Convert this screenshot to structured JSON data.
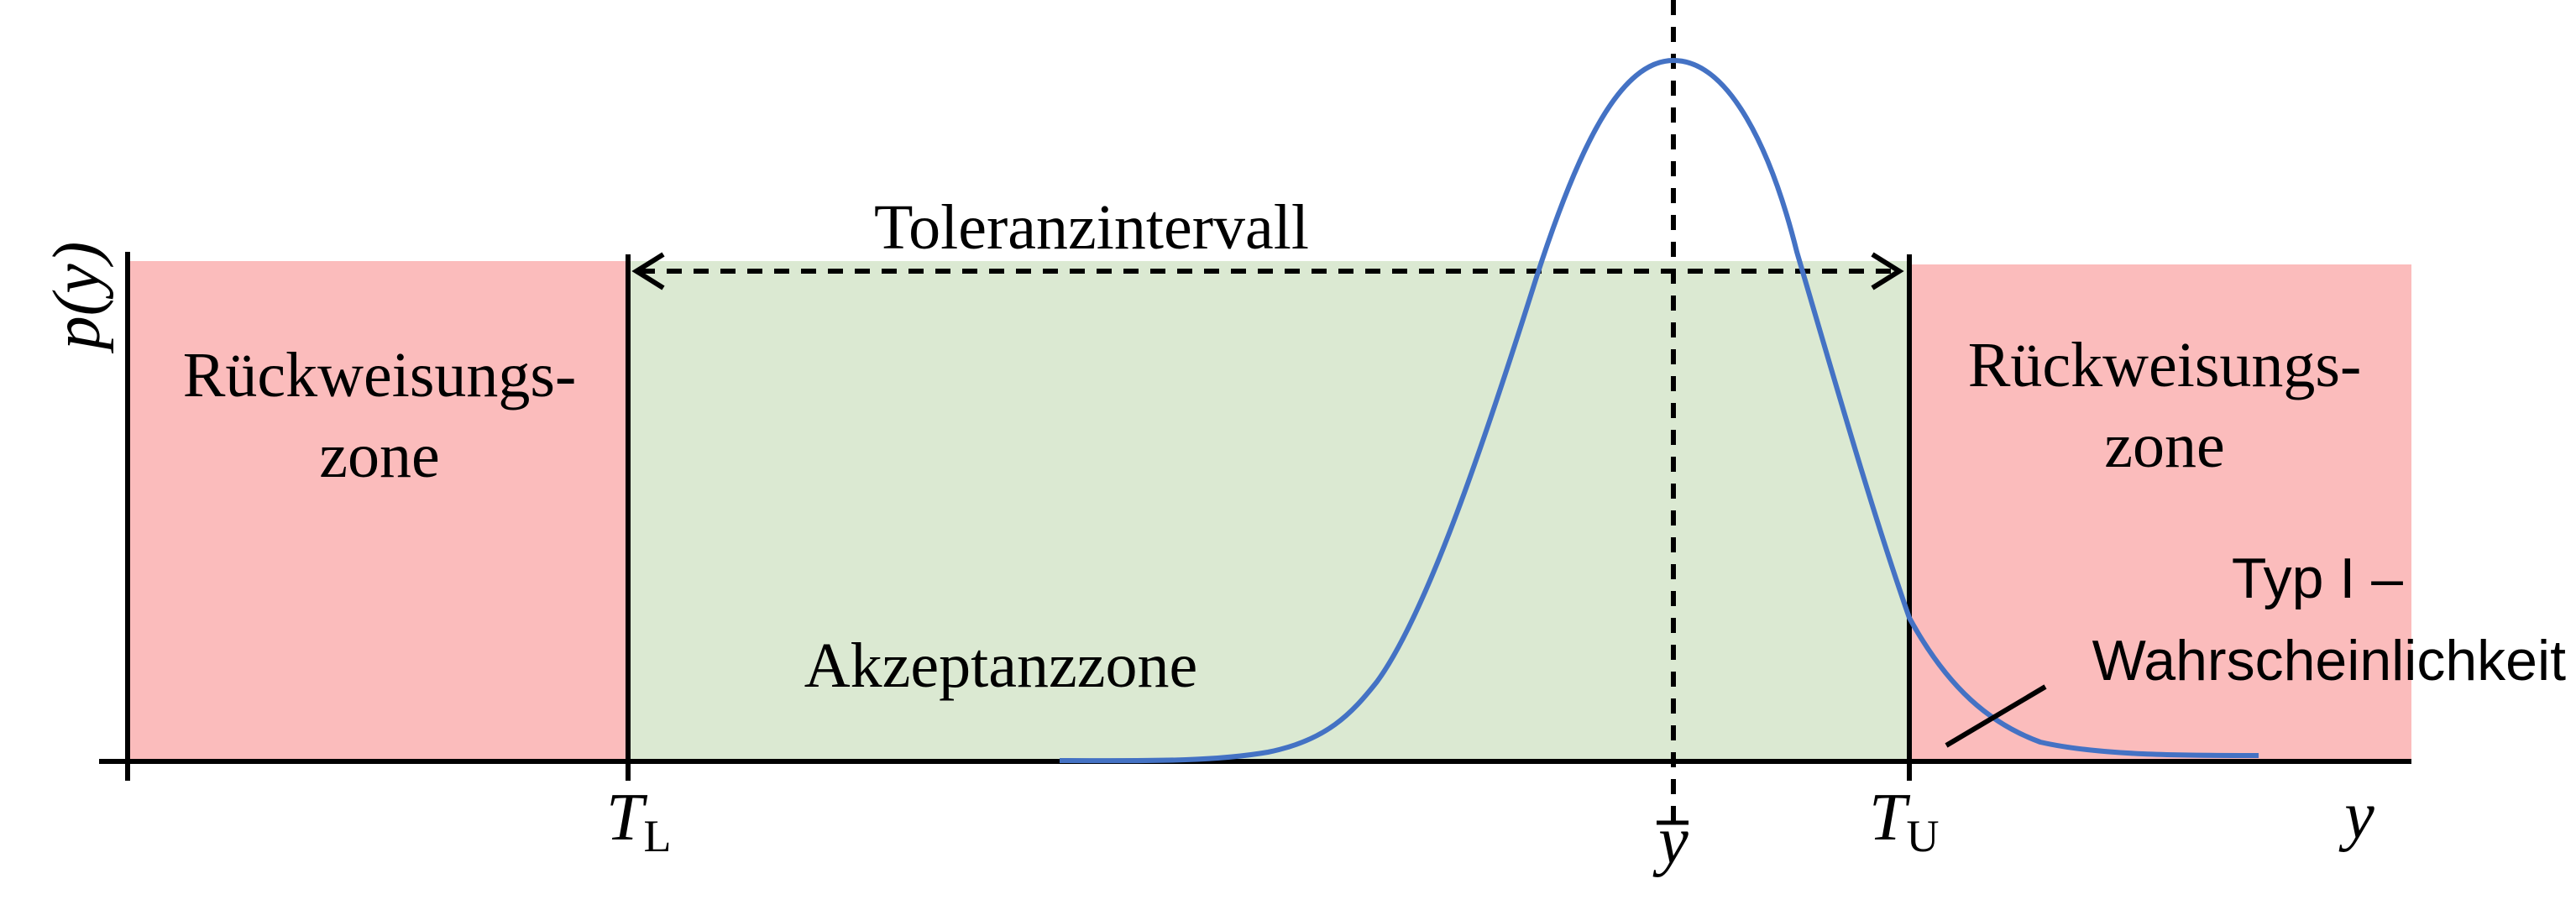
{
  "diagram": {
    "y_axis_label": "p(y)",
    "x_axis_label": "y",
    "tolerance_label": "Toleranzintervall",
    "accept_zone_label": "Akzeptanzzone",
    "reject_left": {
      "line1": "Rückweisungs-",
      "line2": "zone"
    },
    "reject_right": {
      "line1": "Rückweisungs-",
      "line2": "zone"
    },
    "type1_label": {
      "line1": "Typ I –",
      "line2": "Wahrscheinlichkeit"
    },
    "tick_lower": {
      "main": "T",
      "sub": "L"
    },
    "tick_upper": {
      "main": "T",
      "sub": "U"
    },
    "tick_mean": "y",
    "colors": {
      "reject_zone": "#fbbcbc",
      "accept_zone": "#dbe9d2",
      "curve": "#4472c4",
      "lines": "#000000"
    }
  }
}
